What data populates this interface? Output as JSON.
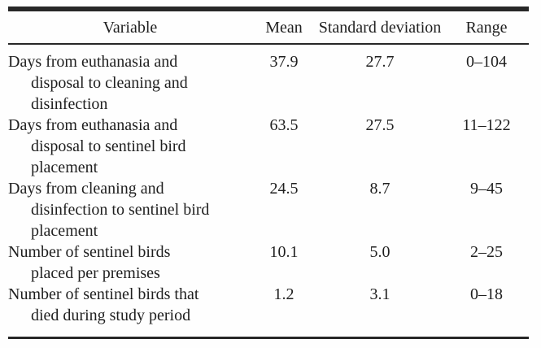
{
  "table": {
    "columns": {
      "variable": "Variable",
      "mean": "Mean",
      "sd": "Standard deviation",
      "range": "Range"
    },
    "rows": [
      {
        "variable_lines": [
          "Days from euthanasia and",
          "disposal to cleaning and",
          "disinfection"
        ],
        "mean": "37.9",
        "sd": "27.7",
        "range": "0–104"
      },
      {
        "variable_lines": [
          "Days from euthanasia and",
          "disposal to sentinel bird",
          "placement"
        ],
        "mean": "63.5",
        "sd": "27.5",
        "range": "11–122"
      },
      {
        "variable_lines": [
          "Days from cleaning and",
          "disinfection to sentinel bird",
          "placement"
        ],
        "mean": "24.5",
        "sd": "8.7",
        "range": "9–45"
      },
      {
        "variable_lines": [
          "Number of sentinel birds",
          "placed per premises"
        ],
        "mean": "10.1",
        "sd": "5.0",
        "range": "2–25"
      },
      {
        "variable_lines": [
          "Number of sentinel birds that",
          "died during study period"
        ],
        "mean": "1.2",
        "sd": "3.1",
        "range": "0–18"
      }
    ]
  },
  "colors": {
    "background": "#fefefe",
    "text": "#1f1f1f",
    "rule": "#272727"
  }
}
